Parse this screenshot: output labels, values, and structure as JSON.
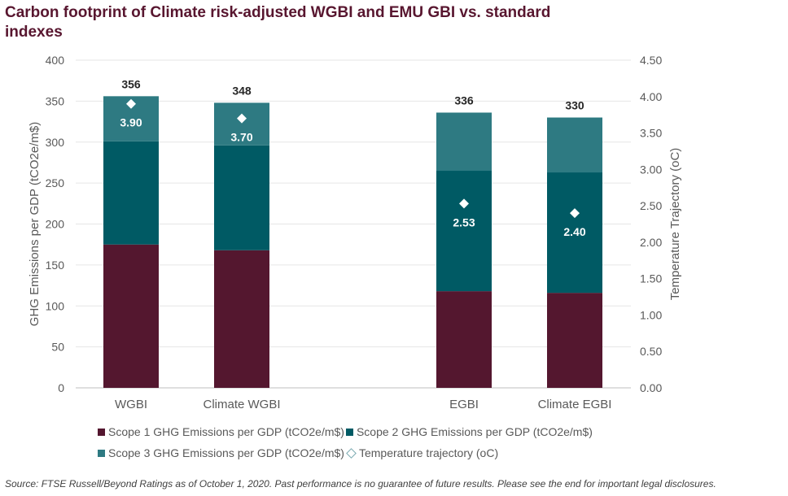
{
  "title": "Carbon footprint of Climate risk-adjusted WGBI and EMU GBI vs. standard indexes",
  "source": "Source: FTSE Russell/Beyond Ratings as of October 1, 2020. Past performance is no guarantee of future results. Please see the end for important legal disclosures.",
  "legend": {
    "scope1": "Scope 1 GHG Emissions per GDP (tCO2e/m$)",
    "scope2": "Scope 2 GHG Emissions per GDP (tCO2e/m$)",
    "scope3": "Scope 3 GHG Emissions per GDP (tCO2e/m$)",
    "temp": "Temperature trajectory (oC)"
  },
  "colors": {
    "scope1": "#54172f",
    "scope2": "#005a64",
    "scope3": "#2e7a82",
    "grid": "#e6e6e6",
    "axis_text": "#595959"
  },
  "chart_data": {
    "type": "bar",
    "stacked": true,
    "categories": [
      "WGBI",
      "Climate WGBI",
      "EGBI",
      "Climate EGBI"
    ],
    "series": [
      {
        "name": "Scope 1 GHG Emissions per GDP (tCO2e/m$)",
        "values": [
          175,
          168,
          118,
          116
        ]
      },
      {
        "name": "Scope 2 GHG Emissions per GDP (tCO2e/m$)",
        "values": [
          126,
          128,
          147,
          147
        ]
      },
      {
        "name": "Scope 3 GHG Emissions per GDP (tCO2e/m$)",
        "values": [
          55,
          52,
          71,
          67
        ]
      }
    ],
    "totals": [
      "356",
      "348",
      "336",
      "330"
    ],
    "temperature": {
      "name": "Temperature trajectory (oC)",
      "values": [
        3.9,
        3.7,
        2.53,
        2.4
      ],
      "labels": [
        "3.90",
        "3.70",
        "2.53",
        "2.40"
      ]
    },
    "ylabel": "GHG Emissions per GDP (tCO2e/m$)",
    "y2label": "Temperature  Trajectory  (oC)",
    "ylim": [
      0,
      400
    ],
    "y2lim": [
      0,
      4.5
    ],
    "yticks": [
      "0",
      "50",
      "100",
      "150",
      "200",
      "250",
      "300",
      "350",
      "400"
    ],
    "y2ticks": [
      "0.00",
      "0.50",
      "1.00",
      "1.50",
      "2.00",
      "2.50",
      "3.00",
      "3.50",
      "4.00",
      "4.50"
    ],
    "grid": true,
    "legend_position": "bottom"
  }
}
